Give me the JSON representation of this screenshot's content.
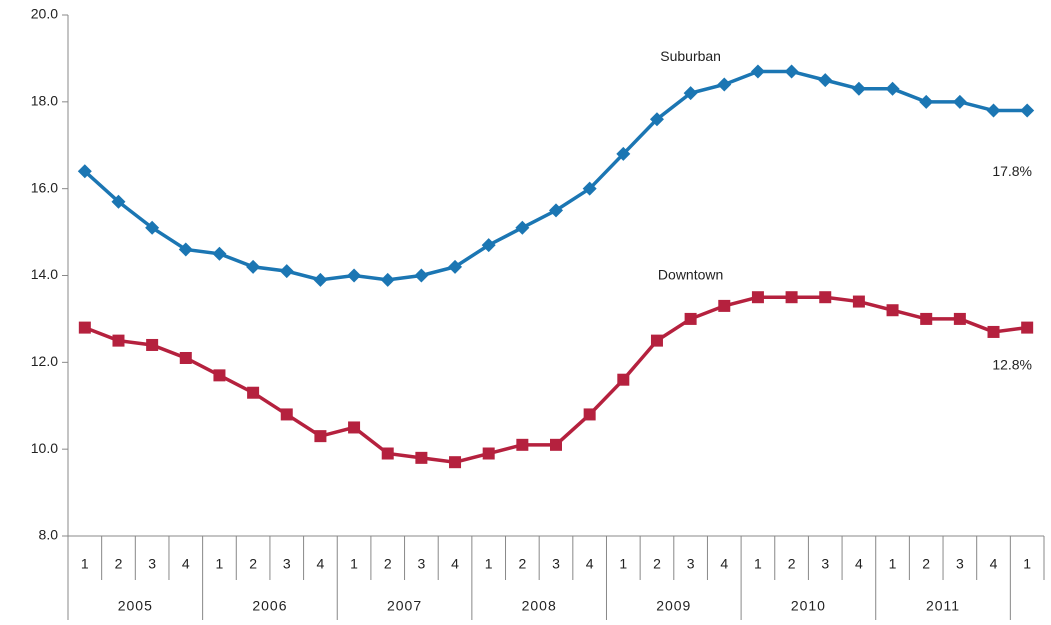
{
  "chart_data": {
    "type": "line",
    "categories": [
      "1",
      "2",
      "3",
      "4",
      "1",
      "2",
      "3",
      "4",
      "1",
      "2",
      "3",
      "4",
      "1",
      "2",
      "3",
      "4",
      "1",
      "2",
      "3",
      "4",
      "1",
      "2",
      "3",
      "4",
      "1",
      "2",
      "3",
      "4",
      "1"
    ],
    "year_groups": [
      "2005",
      "2006",
      "2007",
      "2008",
      "2009",
      "2010",
      "2011"
    ],
    "series": [
      {
        "name": "Suburban",
        "color": "#1b76b3",
        "marker": "diamond",
        "values": [
          16.4,
          15.7,
          15.1,
          14.6,
          14.5,
          14.2,
          14.1,
          13.9,
          14.0,
          13.9,
          14.0,
          14.2,
          14.7,
          15.1,
          15.5,
          16.0,
          16.8,
          17.6,
          18.2,
          18.4,
          18.7,
          18.7,
          18.5,
          18.3,
          18.3,
          18.0,
          18.0,
          17.8,
          17.8
        ],
        "value_labels": [
          null,
          null,
          null,
          null,
          null,
          null,
          null,
          null,
          null,
          null,
          null,
          null,
          null,
          null,
          null,
          null,
          null,
          null,
          null,
          null,
          null,
          null,
          null,
          null,
          null,
          null,
          null,
          null,
          "17.8%"
        ]
      },
      {
        "name": "Downtown",
        "color": "#b5213e",
        "marker": "square",
        "values": [
          12.8,
          12.5,
          12.4,
          12.1,
          11.7,
          11.3,
          10.8,
          10.3,
          10.5,
          9.9,
          9.8,
          9.7,
          9.9,
          10.1,
          10.1,
          10.8,
          11.6,
          12.5,
          13.0,
          13.3,
          13.5,
          13.5,
          13.5,
          13.4,
          13.2,
          13.0,
          13.0,
          12.7,
          12.8
        ],
        "value_labels": [
          null,
          null,
          null,
          null,
          null,
          null,
          null,
          null,
          null,
          null,
          null,
          null,
          null,
          null,
          null,
          null,
          null,
          null,
          null,
          null,
          null,
          null,
          null,
          null,
          null,
          null,
          null,
          null,
          "12.8%"
        ]
      }
    ],
    "ylim": [
      8,
      20
    ],
    "yticks": [
      {
        "value": 8,
        "label": "8.0"
      },
      {
        "value": 10,
        "label": "10.0"
      },
      {
        "value": 12,
        "label": "12.0"
      },
      {
        "value": 14,
        "label": "14.0"
      },
      {
        "value": 16,
        "label": "16.0"
      },
      {
        "value": 18,
        "label": "18.0"
      },
      {
        "value": 20,
        "label": "20.0"
      }
    ],
    "grid": false
  }
}
